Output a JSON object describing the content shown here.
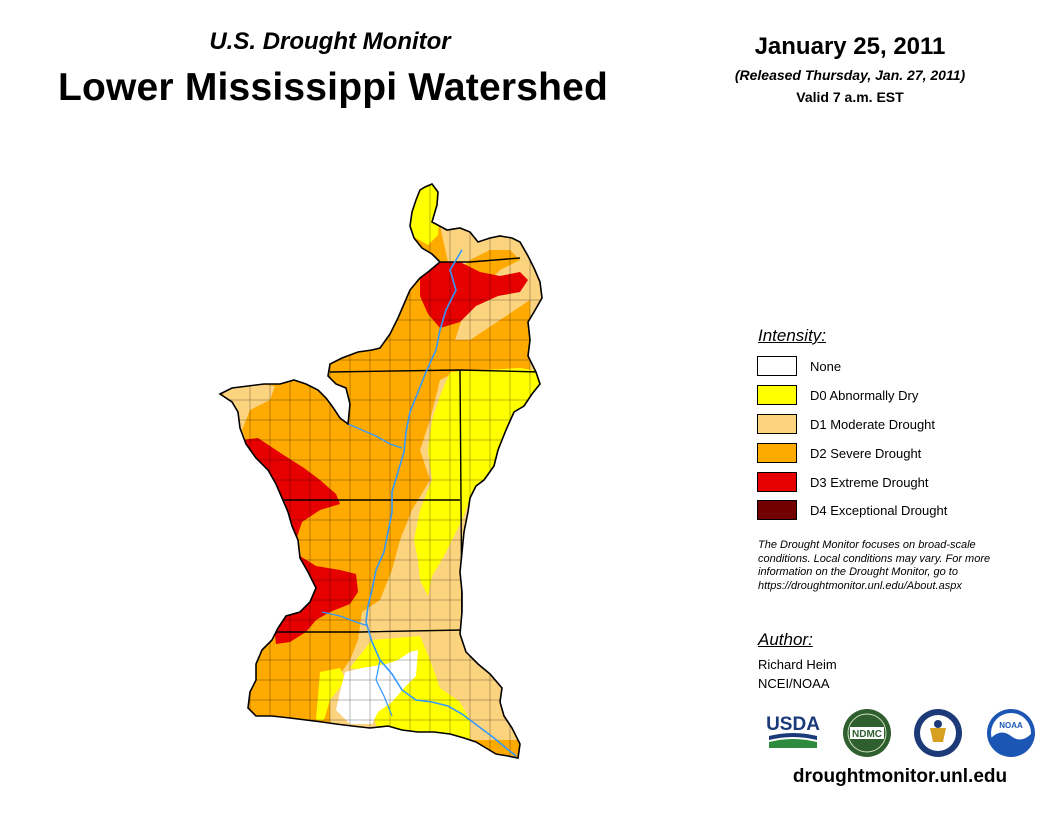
{
  "header": {
    "subtitle": "U.S. Drought Monitor",
    "title": "Lower Mississippi Watershed",
    "date": "January 25, 2011",
    "released": "(Released Thursday, Jan. 27, 2011)",
    "valid": "Valid 7 a.m. EST"
  },
  "legend": {
    "heading": "Intensity:",
    "items": [
      {
        "label": "None",
        "color": "#ffffff"
      },
      {
        "label": "D0 Abnormally Dry",
        "color": "#ffff00"
      },
      {
        "label": "D1 Moderate Drought",
        "color": "#fcd37f"
      },
      {
        "label": "D2 Severe Drought",
        "color": "#ffaa00"
      },
      {
        "label": "D3 Extreme Drought",
        "color": "#e60000"
      },
      {
        "label": "D4 Exceptional Drought",
        "color": "#730000"
      }
    ]
  },
  "note": {
    "line1": "The Drought Monitor focuses on broad-scale",
    "line2": "conditions. Local conditions may vary. For more",
    "line3": "information on the Drought Monitor, go to",
    "line4": "https://droughtmonitor.unl.edu/About.aspx"
  },
  "author": {
    "heading": "Author:",
    "name": "Richard Heim",
    "org": "NCEI/NOAA"
  },
  "logos": {
    "usda": "USDA",
    "ndmc": "NDMC",
    "noaa": "NOAA"
  },
  "map": {
    "river_color": "#3399ff",
    "border_color": "#000000"
  },
  "footer": {
    "url": "droughtmonitor.unl.edu"
  }
}
